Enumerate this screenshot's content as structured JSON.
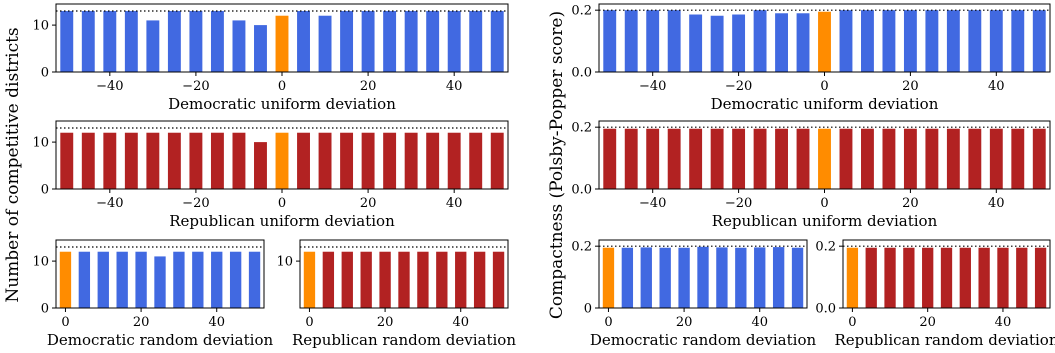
{
  "colors": {
    "democratic": "#4169e1",
    "republican": "#b22222",
    "baseline": "#ff8c00",
    "frame": "#000000",
    "reference_line": "#000000"
  },
  "y_labels": {
    "left": "Number of competitive districts",
    "right": "Compactness (Polsby-Popper score)"
  },
  "chart_data": [
    {
      "id": "comp-dem-uniform",
      "type": "bar",
      "xlabel": "Democratic uniform deviation",
      "x": [
        -50,
        -45,
        -40,
        -35,
        -30,
        -25,
        -20,
        -15,
        -10,
        -5,
        0,
        5,
        10,
        15,
        20,
        25,
        30,
        35,
        40,
        45,
        50
      ],
      "values": [
        13,
        13,
        13,
        13,
        11,
        13,
        13,
        13,
        11,
        10,
        12,
        13,
        12,
        13,
        13,
        13,
        13,
        13,
        13,
        13,
        13
      ],
      "highlight_x": 0,
      "reference_y": 13,
      "xlim": [
        -52.5,
        52.5
      ],
      "ylim": [
        0,
        14.5
      ],
      "xticks": [
        -40,
        -20,
        0,
        20,
        40
      ],
      "xtick_labels": [
        "−40",
        "−20",
        "0",
        "20",
        "40"
      ],
      "yticks": [
        0,
        10
      ],
      "ytick_labels": [
        "0",
        "10"
      ],
      "grid": false
    },
    {
      "id": "comp-rep-uniform",
      "type": "bar",
      "xlabel": "Republican uniform deviation",
      "x": [
        -50,
        -45,
        -40,
        -35,
        -30,
        -25,
        -20,
        -15,
        -10,
        -5,
        0,
        5,
        10,
        15,
        20,
        25,
        30,
        35,
        40,
        45,
        50
      ],
      "values": [
        12,
        12,
        12,
        12,
        12,
        12,
        12,
        12,
        12,
        10,
        12,
        12,
        12,
        12,
        12,
        12,
        12,
        12,
        12,
        12,
        12
      ],
      "highlight_x": 0,
      "reference_y": 13,
      "xlim": [
        -52.5,
        52.5
      ],
      "ylim": [
        0,
        14.5
      ],
      "xticks": [
        -40,
        -20,
        0,
        20,
        40
      ],
      "xtick_labels": [
        "−40",
        "−20",
        "0",
        "20",
        "40"
      ],
      "yticks": [
        0,
        10
      ],
      "ytick_labels": [
        "0",
        "10"
      ],
      "grid": false
    },
    {
      "id": "comp-dem-random",
      "type": "bar",
      "xlabel": "Democratic random deviation",
      "x": [
        0,
        5,
        10,
        15,
        20,
        25,
        30,
        35,
        40,
        45,
        50
      ],
      "values": [
        12,
        12,
        12,
        12,
        12,
        11,
        12,
        12,
        12,
        12,
        12
      ],
      "highlight_x": 0,
      "reference_y": 13,
      "xlim": [
        -2.5,
        52.5
      ],
      "ylim": [
        0,
        14.5
      ],
      "xticks": [
        0,
        20,
        40
      ],
      "xtick_labels": [
        "0",
        "20",
        "40"
      ],
      "yticks": [
        0,
        10
      ],
      "ytick_labels": [
        "0",
        "10"
      ],
      "grid": false
    },
    {
      "id": "comp-rep-random",
      "type": "bar",
      "xlabel": "Republican random deviation",
      "x": [
        0,
        5,
        10,
        15,
        20,
        25,
        30,
        35,
        40,
        45,
        50
      ],
      "values": [
        12,
        12,
        12,
        12,
        12,
        12,
        12,
        12,
        12,
        12,
        12
      ],
      "highlight_x": 0,
      "reference_y": 13,
      "xlim": [
        -2.5,
        52.5
      ],
      "ylim": [
        0,
        14.5
      ],
      "xticks": [
        0,
        20,
        40
      ],
      "xtick_labels": [
        "0",
        "20",
        "40"
      ],
      "yticks": [
        10
      ],
      "ytick_labels": [
        "10"
      ],
      "grid": false
    },
    {
      "id": "pp-dem-uniform",
      "type": "bar",
      "xlabel": "Democratic uniform deviation",
      "x": [
        -50,
        -45,
        -40,
        -35,
        -30,
        -25,
        -20,
        -15,
        -10,
        -5,
        0,
        5,
        10,
        15,
        20,
        25,
        30,
        35,
        40,
        45,
        50
      ],
      "values": [
        0.2,
        0.2,
        0.2,
        0.2,
        0.186,
        0.182,
        0.186,
        0.2,
        0.19,
        0.19,
        0.195,
        0.2,
        0.2,
        0.2,
        0.2,
        0.2,
        0.2,
        0.2,
        0.2,
        0.2,
        0.2
      ],
      "highlight_x": 0,
      "reference_y": 0.2,
      "xlim": [
        -52.5,
        52.5
      ],
      "ylim": [
        0,
        0.22
      ],
      "xticks": [
        -40,
        -20,
        0,
        20,
        40
      ],
      "xtick_labels": [
        "−40",
        "−20",
        "0",
        "20",
        "40"
      ],
      "yticks": [
        0,
        0.2
      ],
      "ytick_labels": [
        "0.0",
        "0.2"
      ],
      "grid": false
    },
    {
      "id": "pp-rep-uniform",
      "type": "bar",
      "xlabel": "Republican uniform deviation",
      "x": [
        -50,
        -45,
        -40,
        -35,
        -30,
        -25,
        -20,
        -15,
        -10,
        -5,
        0,
        5,
        10,
        15,
        20,
        25,
        30,
        35,
        40,
        45,
        50
      ],
      "values": [
        0.195,
        0.195,
        0.195,
        0.195,
        0.195,
        0.195,
        0.195,
        0.195,
        0.195,
        0.195,
        0.195,
        0.195,
        0.195,
        0.195,
        0.195,
        0.195,
        0.195,
        0.195,
        0.195,
        0.195,
        0.195
      ],
      "highlight_x": 0,
      "reference_y": 0.2,
      "xlim": [
        -52.5,
        52.5
      ],
      "ylim": [
        0,
        0.22
      ],
      "xticks": [
        -40,
        -20,
        0,
        20,
        40
      ],
      "xtick_labels": [
        "−40",
        "−20",
        "0",
        "20",
        "40"
      ],
      "yticks": [
        0,
        0.2
      ],
      "ytick_labels": [
        "0.0",
        "0.2"
      ],
      "grid": false
    },
    {
      "id": "pp-dem-random",
      "type": "bar",
      "xlabel": "Democratic random deviation",
      "x": [
        0,
        5,
        10,
        15,
        20,
        25,
        30,
        35,
        40,
        45,
        50
      ],
      "values": [
        0.195,
        0.195,
        0.196,
        0.195,
        0.195,
        0.198,
        0.196,
        0.195,
        0.196,
        0.197,
        0.195
      ],
      "highlight_x": 0,
      "reference_y": 0.2,
      "xlim": [
        -2.5,
        52.5
      ],
      "ylim": [
        0,
        0.22
      ],
      "xticks": [
        0,
        20,
        40
      ],
      "xtick_labels": [
        "0",
        "20",
        "40"
      ],
      "yticks": [
        0,
        0.2
      ],
      "ytick_labels": [
        "0",
        "0.2"
      ],
      "grid": false
    },
    {
      "id": "pp-rep-random",
      "type": "bar",
      "xlabel": "Republican random deviation",
      "x": [
        0,
        5,
        10,
        15,
        20,
        25,
        30,
        35,
        40,
        45,
        50
      ],
      "values": [
        0.195,
        0.195,
        0.195,
        0.195,
        0.195,
        0.195,
        0.195,
        0.195,
        0.195,
        0.195,
        0.195
      ],
      "highlight_x": 0,
      "reference_y": 0.2,
      "xlim": [
        -2.5,
        52.5
      ],
      "ylim": [
        0,
        0.22
      ],
      "xticks": [
        0,
        20,
        40
      ],
      "xtick_labels": [
        "0",
        "20",
        "40"
      ],
      "yticks": [
        0,
        0.2
      ],
      "ytick_labels": [
        "0.0",
        "0.2"
      ],
      "grid": false
    }
  ]
}
